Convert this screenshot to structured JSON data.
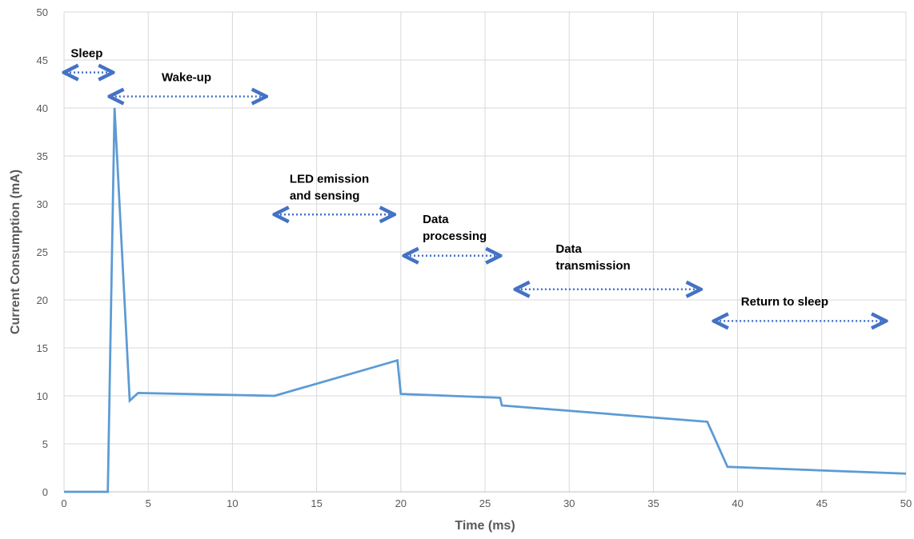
{
  "chart_data": {
    "type": "line",
    "xlabel": "Time (ms)",
    "ylabel": "Current Consumption (mA)",
    "xlim": [
      0,
      50
    ],
    "ylim": [
      0,
      50
    ],
    "x_ticks": [
      "0",
      "5",
      "10",
      "15",
      "20",
      "25",
      "30",
      "35",
      "40",
      "45",
      "50"
    ],
    "y_ticks": [
      "0",
      "5",
      "10",
      "15",
      "20",
      "25",
      "30",
      "35",
      "40",
      "45",
      "50"
    ],
    "grid": true,
    "legend": "none",
    "line_color": "#5B9BD5",
    "annotation_color": "#4472C4",
    "series": [
      {
        "points": [
          [
            0,
            0
          ],
          [
            2.6,
            0
          ],
          [
            3.0,
            40
          ],
          [
            3.9,
            9.5
          ],
          [
            4.4,
            10.3
          ],
          [
            12.5,
            10.0
          ],
          [
            19.8,
            13.7
          ],
          [
            20.0,
            10.2
          ],
          [
            25.9,
            9.8
          ],
          [
            26.0,
            9.0
          ],
          [
            38.2,
            7.3
          ],
          [
            39.4,
            2.6
          ],
          [
            50,
            1.9
          ]
        ]
      }
    ],
    "annotations": [
      {
        "lines": [
          "Sleep"
        ],
        "x": 0.4,
        "y": 45.3,
        "range": [
          0,
          2.9
        ],
        "arrow_y": 43.7
      },
      {
        "lines": [
          "Wake-up"
        ],
        "x": 5.8,
        "y": 42.8,
        "range": [
          2.7,
          12.0
        ],
        "arrow_y": 41.2
      },
      {
        "lines": [
          "LED emission",
          "and sensing"
        ],
        "x": 13.4,
        "y": 32.2,
        "range": [
          12.5,
          19.6
        ],
        "arrow_y": 28.9
      },
      {
        "lines": [
          "Data",
          "processing"
        ],
        "x": 21.3,
        "y": 28.0,
        "range": [
          20.2,
          25.9
        ],
        "arrow_y": 24.6
      },
      {
        "lines": [
          "Data",
          "transmission"
        ],
        "x": 29.2,
        "y": 24.9,
        "range": [
          26.8,
          37.8
        ],
        "arrow_y": 21.1
      },
      {
        "lines": [
          "Return to sleep"
        ],
        "x": 40.2,
        "y": 19.4,
        "range": [
          38.6,
          48.8
        ],
        "arrow_y": 17.8
      }
    ]
  }
}
